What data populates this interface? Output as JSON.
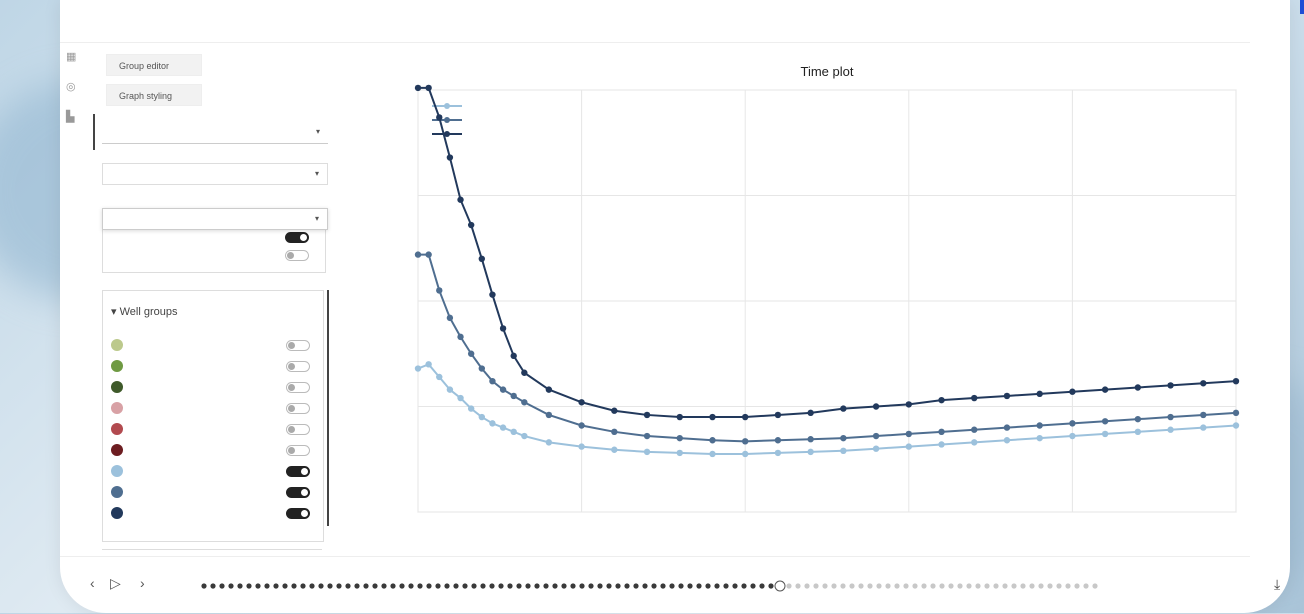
{
  "app": {
    "tab_title": "",
    "right_info": ""
  },
  "sidebar": {
    "rail_icons": [
      "grid-icon",
      "target-icon",
      "chart-icon"
    ],
    "buttons": {
      "group_editor": "Group editor",
      "graph_styling": "Graph styling"
    },
    "diagram_label": "",
    "diagram_value": "",
    "x_axis_select": "",
    "y_axis_select": "",
    "mini_rows": [
      {
        "label": "",
        "on": true
      },
      {
        "label": "",
        "on": false
      }
    ],
    "well_groups": {
      "title": "Well groups",
      "items": [
        {
          "label": "",
          "color": "#bcc98c",
          "on": false
        },
        {
          "label": "",
          "color": "#6f9a43",
          "on": false
        },
        {
          "label": "",
          "color": "#3f5a2a",
          "on": false
        },
        {
          "label": "",
          "color": "#d8a1a5",
          "on": false
        },
        {
          "label": "",
          "color": "#b24a4f",
          "on": false
        },
        {
          "label": "",
          "color": "#6d1d21",
          "on": false
        },
        {
          "label": "",
          "color": "#9cc1dc",
          "on": true
        },
        {
          "label": "",
          "color": "#4f6e90",
          "on": true
        },
        {
          "label": "",
          "color": "#22395c",
          "on": true
        }
      ]
    }
  },
  "bottom": {
    "date_text": "",
    "prev": "‹",
    "play": "▷",
    "next": "›",
    "download_icon": "download-icon"
  },
  "chart_data": {
    "type": "line",
    "title": "Time plot",
    "xlabel": "",
    "ylabel": "",
    "xlim": [
      0,
      100
    ],
    "ylim": [
      0,
      0.2
    ],
    "x_ticks": [
      0,
      20,
      40,
      60,
      80,
      100
    ],
    "y_ticks": [
      0,
      0.05,
      0.1,
      0.15,
      0.2
    ],
    "x_tick_labels": [
      "",
      "",
      "",
      "",
      "",
      ""
    ],
    "y_tick_labels": [
      "",
      "",
      "",
      "",
      ""
    ],
    "grid": true,
    "legend_position": "top-left",
    "series": [
      {
        "name": "",
        "color": "#9cc1dc",
        "x": [
          0,
          1.3,
          2.6,
          3.9,
          5.2,
          6.5,
          7.8,
          9.1,
          10.4,
          11.7,
          13,
          16,
          20,
          24,
          28,
          32,
          36,
          40,
          44,
          48,
          52,
          56,
          60,
          64,
          68,
          72,
          76,
          80,
          84,
          88,
          92,
          96,
          100
        ],
        "y": [
          0.068,
          0.07,
          0.064,
          0.058,
          0.054,
          0.049,
          0.045,
          0.042,
          0.04,
          0.038,
          0.036,
          0.033,
          0.031,
          0.0295,
          0.0285,
          0.028,
          0.0275,
          0.0275,
          0.028,
          0.0285,
          0.029,
          0.03,
          0.031,
          0.032,
          0.033,
          0.034,
          0.035,
          0.036,
          0.037,
          0.038,
          0.039,
          0.04,
          0.041
        ]
      },
      {
        "name": "",
        "color": "#4f6e90",
        "x": [
          0,
          1.3,
          2.6,
          3.9,
          5.2,
          6.5,
          7.8,
          9.1,
          10.4,
          11.7,
          13,
          16,
          20,
          24,
          28,
          32,
          36,
          40,
          44,
          48,
          52,
          56,
          60,
          64,
          68,
          72,
          76,
          80,
          84,
          88,
          92,
          96,
          100
        ],
        "y": [
          0.122,
          0.122,
          0.105,
          0.092,
          0.083,
          0.075,
          0.068,
          0.062,
          0.058,
          0.055,
          0.052,
          0.046,
          0.041,
          0.038,
          0.036,
          0.035,
          0.034,
          0.0335,
          0.034,
          0.0345,
          0.035,
          0.036,
          0.037,
          0.038,
          0.039,
          0.04,
          0.041,
          0.042,
          0.043,
          0.044,
          0.045,
          0.046,
          0.047
        ]
      },
      {
        "name": "",
        "color": "#22395c",
        "x": [
          0,
          1.3,
          2.6,
          3.9,
          5.2,
          6.5,
          7.8,
          9.1,
          10.4,
          11.7,
          13,
          16,
          20,
          24,
          28,
          32,
          36,
          40,
          44,
          48,
          52,
          56,
          60,
          64,
          68,
          72,
          76,
          80,
          84,
          88,
          92,
          96,
          100
        ],
        "y": [
          0.201,
          0.201,
          0.187,
          0.168,
          0.148,
          0.136,
          0.12,
          0.103,
          0.087,
          0.074,
          0.066,
          0.058,
          0.052,
          0.048,
          0.046,
          0.045,
          0.045,
          0.045,
          0.046,
          0.047,
          0.049,
          0.05,
          0.051,
          0.053,
          0.054,
          0.055,
          0.056,
          0.057,
          0.058,
          0.059,
          0.06,
          0.061,
          0.062
        ]
      }
    ]
  }
}
